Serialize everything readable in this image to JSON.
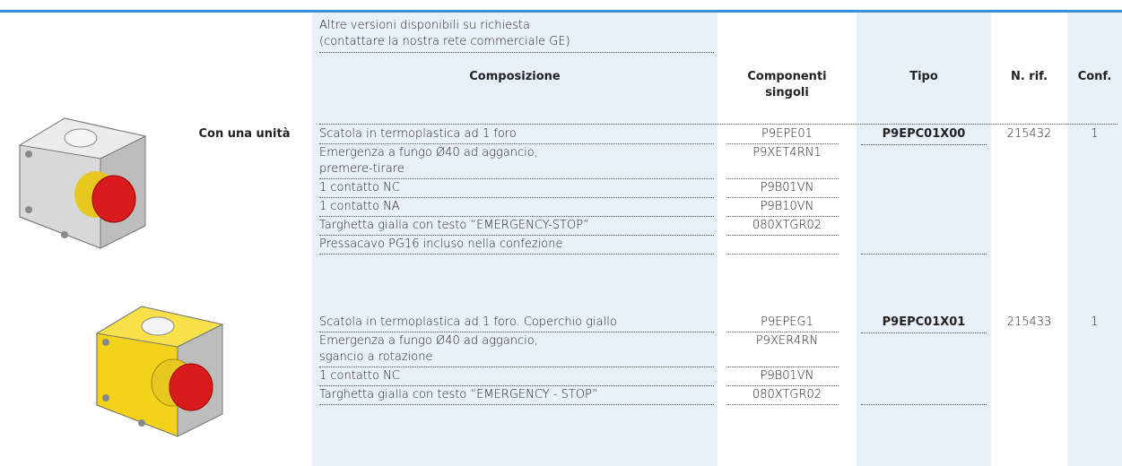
{
  "note": [
    "Altre versioni disponibili su richiesta",
    "(contattare la nostra rete commerciale GE)"
  ],
  "columns": {
    "composition": "Composizione",
    "components": [
      "Componenti",
      "singoli"
    ],
    "type": "Tipo",
    "ref": "N. rif.",
    "conf": "Conf."
  },
  "groups": [
    {
      "label": "Con una unità",
      "type": "P9EPC01X00",
      "ref": "215432",
      "conf": "1",
      "items": [
        {
          "text": [
            "Scatola in termoplastica ad 1 foro"
          ],
          "component": "P9EPE01"
        },
        {
          "text": [
            "Emergenza a fungo Ø40 ad aggancio,",
            "premere-tirare"
          ],
          "component": "P9XET4RN1"
        },
        {
          "text": [
            "1 contatto NC"
          ],
          "component": "P9B01VN"
        },
        {
          "text": [
            "1 contatto NA"
          ],
          "component": "P9B10VN"
        },
        {
          "text": [
            "Targhetta gialla con testo “EMERGENCY-STOP”"
          ],
          "component": "080XTGR02"
        },
        {
          "text": [
            "Pressacavo PG16 incluso nella confezione"
          ]
        }
      ]
    },
    {
      "type": "P9EPC01X01",
      "ref": "215433",
      "conf": "1",
      "items": [
        {
          "text": [
            "Scatola in termoplastica ad 1 foro. Coperchio giallo"
          ],
          "component": "P9EPEG1"
        },
        {
          "text": [
            "Emergenza a fungo Ø40 ad aggancio,",
            "sgancio a rotazione"
          ],
          "component": "P9XER4RN"
        },
        {
          "text": [
            "1 contatto NC"
          ],
          "component": "P9B01VN"
        },
        {
          "text": [
            "Targhetta gialla con testo “EMERGENCY - STOP”"
          ],
          "component": "080XTGR02"
        }
      ]
    }
  ]
}
